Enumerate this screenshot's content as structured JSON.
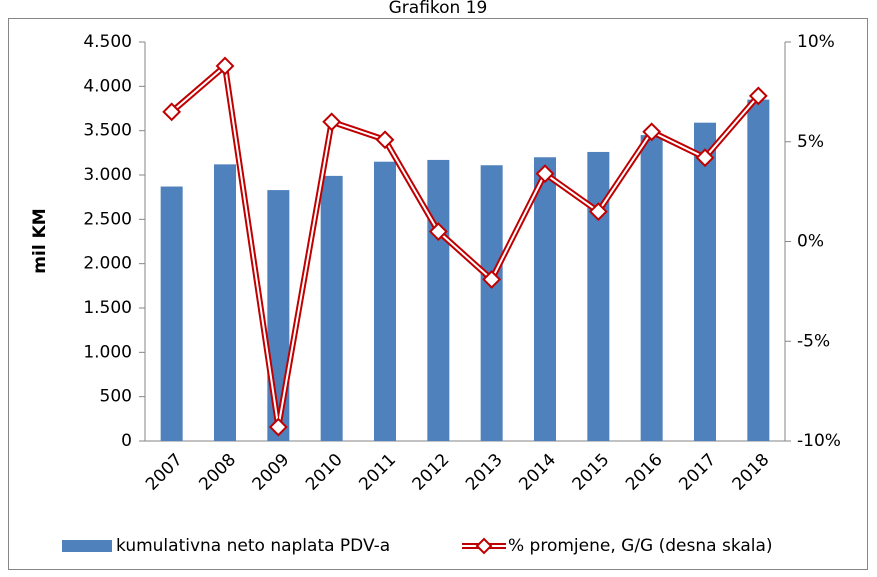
{
  "chart_data": {
    "type": "bar-line",
    "title": "Grafikon 19",
    "y_label": "mil KM",
    "categories": [
      "2007",
      "2008",
      "2009",
      "2010",
      "2011",
      "2012",
      "2013",
      "2014",
      "2015",
      "2016",
      "2017",
      "2018"
    ],
    "series": [
      {
        "name": "kumulativna neto naplata PDV-a",
        "type": "bar",
        "color": "#4f81bd",
        "values": [
          2870,
          3120,
          2830,
          2990,
          3150,
          3170,
          3110,
          3200,
          3260,
          3450,
          3590,
          3850
        ]
      },
      {
        "name": "% promjene, G/G (desna skala)",
        "type": "line",
        "axis": "y2",
        "color": "#c00000",
        "values": [
          6.5,
          8.8,
          -9.3,
          6.0,
          5.1,
          0.5,
          -1.9,
          3.4,
          1.5,
          5.5,
          4.2,
          7.3
        ]
      }
    ],
    "ylim": [
      0,
      4500
    ],
    "yticks": [
      0,
      500,
      {
        "value": 1000,
        "label": "1.000"
      },
      {
        "value": 1500,
        "label": "1.500"
      },
      {
        "value": 2000,
        "label": "2.000"
      },
      {
        "value": 2500,
        "label": "2.500"
      },
      {
        "value": 3000,
        "label": "3.000"
      },
      {
        "value": 3500,
        "label": "3.500"
      },
      {
        "value": 4000,
        "label": "4.000"
      },
      {
        "value": 4500,
        "label": "4.500"
      }
    ],
    "y2lim": [
      -10,
      10
    ],
    "y2ticks": [
      {
        "value": -10,
        "label": "-10%"
      },
      {
        "value": -5,
        "label": "-5%"
      },
      {
        "value": 0,
        "label": "0%"
      },
      {
        "value": 5,
        "label": "5%"
      },
      {
        "value": 10,
        "label": "10%"
      }
    ],
    "legend": "bottom"
  }
}
